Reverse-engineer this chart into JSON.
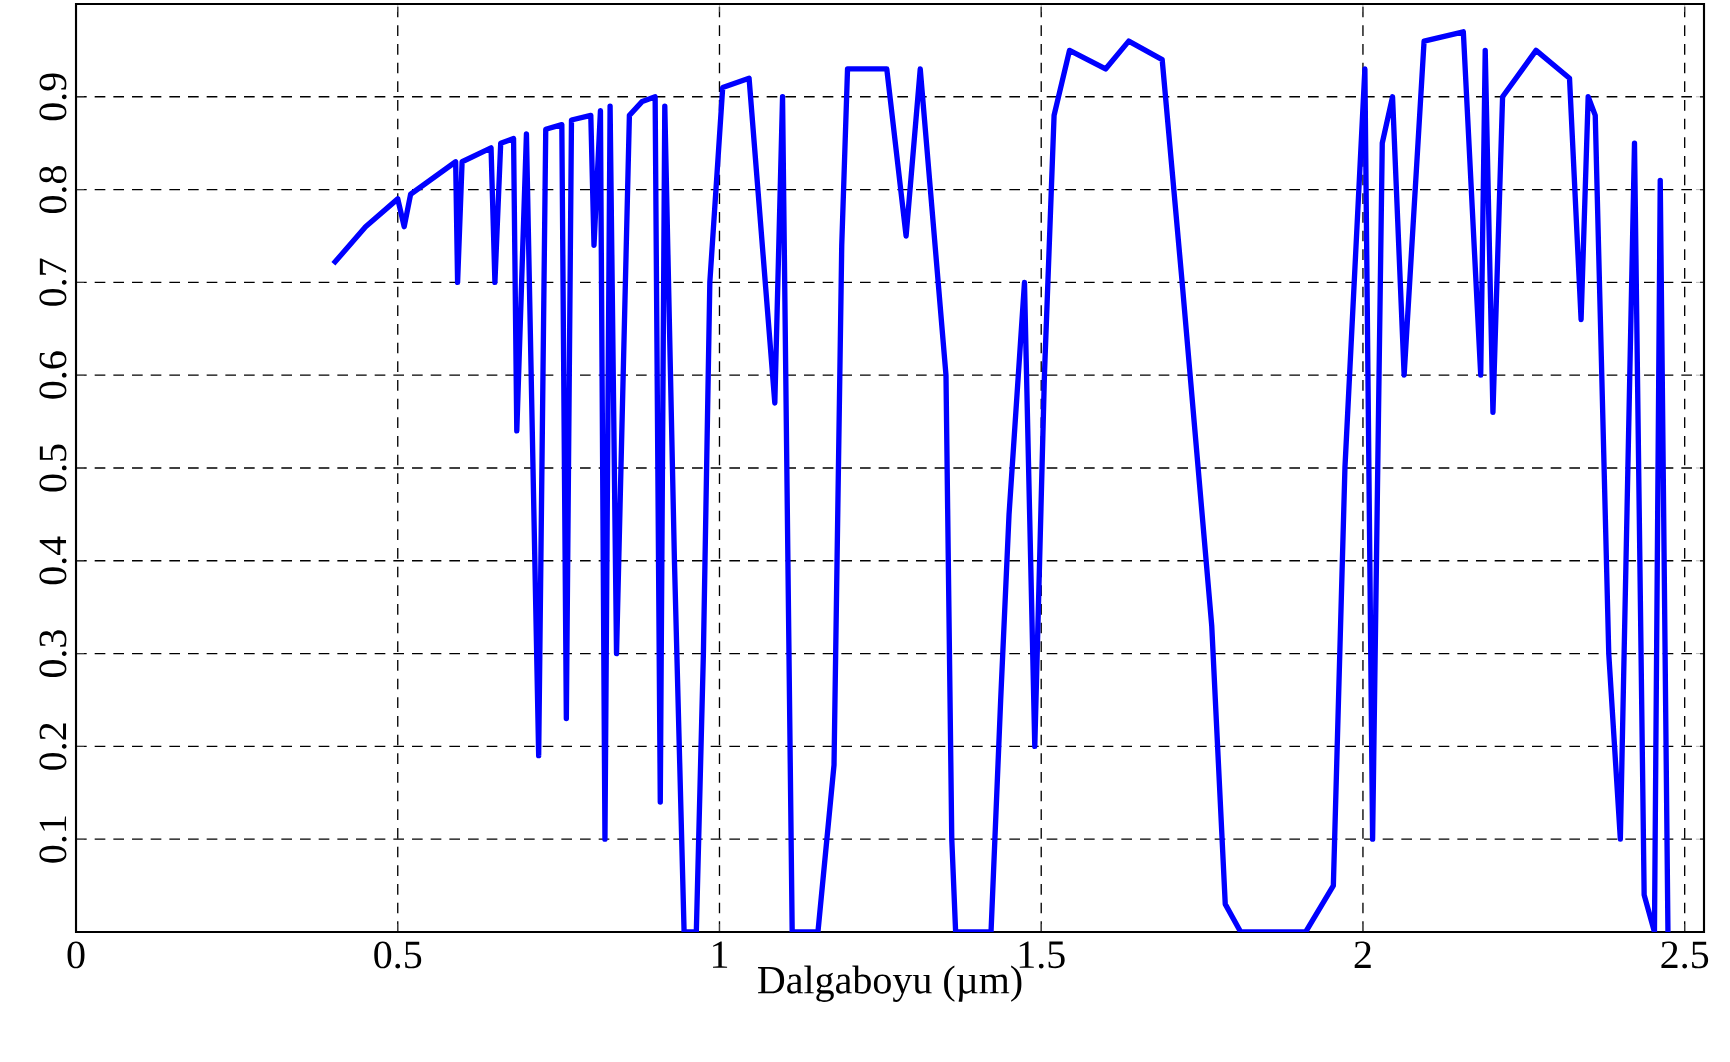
{
  "chart_data": {
    "type": "line",
    "xlabel": "Dalgaboyu (µm)",
    "xlim": [
      0,
      2.53
    ],
    "ylim": [
      0,
      1
    ],
    "xticks": [
      0,
      0.5,
      1,
      1.5,
      2,
      2.5
    ],
    "yticks": [
      0.1,
      0.2,
      0.3,
      0.4,
      0.5,
      0.6,
      0.7,
      0.8,
      0.9
    ],
    "grid": true,
    "line_style": "solid",
    "series": [
      {
        "color": "#0000ff",
        "x": [
          0.4,
          0.45,
          0.5,
          0.51,
          0.52,
          0.59,
          0.593,
          0.6,
          0.645,
          0.651,
          0.66,
          0.68,
          0.685,
          0.7,
          0.719,
          0.73,
          0.755,
          0.762,
          0.77,
          0.8,
          0.805,
          0.815,
          0.822,
          0.83,
          0.84,
          0.86,
          0.88,
          0.9,
          0.908,
          0.915,
          0.93,
          0.945,
          0.964,
          0.975,
          0.985,
          1.005,
          1.046,
          1.086,
          1.098,
          1.113,
          1.153,
          1.178,
          1.19,
          1.199,
          1.26,
          1.29,
          1.312,
          1.352,
          1.361,
          1.367,
          1.422,
          1.437,
          1.45,
          1.474,
          1.49,
          1.505,
          1.52,
          1.544,
          1.6,
          1.636,
          1.688,
          1.719,
          1.765,
          1.786,
          1.81,
          1.911,
          1.954,
          1.972,
          2.003,
          2.015,
          2.03,
          2.046,
          2.064,
          2.095,
          2.156,
          2.183,
          2.19,
          2.202,
          2.217,
          2.269,
          2.321,
          2.339,
          2.35,
          2.361,
          2.382,
          2.4,
          2.422,
          2.437,
          2.453,
          2.462,
          2.474
        ],
        "values": [
          0.72,
          0.76,
          0.79,
          0.76,
          0.795,
          0.83,
          0.7,
          0.83,
          0.845,
          0.7,
          0.85,
          0.855,
          0.54,
          0.86,
          0.19,
          0.865,
          0.87,
          0.23,
          0.875,
          0.88,
          0.74,
          0.885,
          0.1,
          0.89,
          0.3,
          0.88,
          0.895,
          0.9,
          0.14,
          0.89,
          0.4,
          0.0,
          0.0,
          0.3,
          0.7,
          0.91,
          0.92,
          0.57,
          0.9,
          0.0,
          0.0,
          0.18,
          0.74,
          0.93,
          0.93,
          0.75,
          0.93,
          0.6,
          0.1,
          0.0,
          0.0,
          0.25,
          0.45,
          0.7,
          0.2,
          0.6,
          0.88,
          0.95,
          0.93,
          0.96,
          0.94,
          0.7,
          0.33,
          0.03,
          0.0,
          0.0,
          0.05,
          0.5,
          0.93,
          0.1,
          0.85,
          0.9,
          0.6,
          0.96,
          0.97,
          0.6,
          0.95,
          0.56,
          0.9,
          0.95,
          0.92,
          0.66,
          0.9,
          0.88,
          0.3,
          0.1,
          0.85,
          0.04,
          0.0,
          0.81,
          0.0
        ]
      }
    ]
  }
}
